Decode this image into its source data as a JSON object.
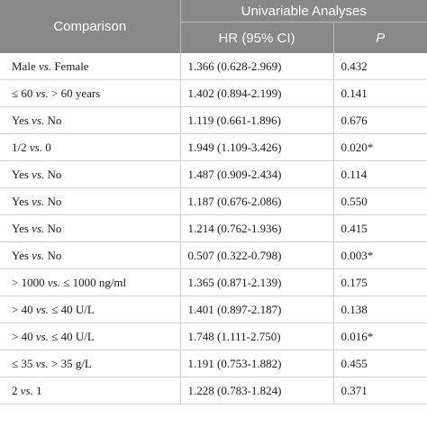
{
  "header": {
    "comparison": "Comparison",
    "group_title": "Univariable Analyses",
    "hr_col": "HR (95% CI)",
    "p_col": "P"
  },
  "rows": [
    {
      "pre": "Male ",
      "vs": "vs.",
      "post": " Female",
      "hr": "1.366 (0.628-2.969)",
      "p": "0.432"
    },
    {
      "pre": "≤ 60 ",
      "vs": "vs.",
      "post": " > 60 years",
      "hr": "1.402 (0.894-2.199)",
      "p": "0.141"
    },
    {
      "pre": "Yes ",
      "vs": "vs.",
      "post": " No",
      "hr": "1.119 (0.661-1.896)",
      "p": "0.676"
    },
    {
      "pre": "1/2 ",
      "vs": "vs.",
      "post": " 0",
      "hr": "1.949 (1.109-3.426)",
      "p": "0.020*"
    },
    {
      "pre": "Yes ",
      "vs": "vs.",
      "post": " No",
      "hr": "1.487 (0.909-2.434)",
      "p": "0.114"
    },
    {
      "pre": "Yes ",
      "vs": "vs.",
      "post": " No",
      "hr": "1.187 (0.676-2.086)",
      "p": "0.550"
    },
    {
      "pre": "Yes ",
      "vs": "vs.",
      "post": " No",
      "hr": "1.214 (0.762-1.936)",
      "p": "0.415"
    },
    {
      "pre": "Yes ",
      "vs": "vs.",
      "post": " No",
      "hr": "0.507 (0.322-0.798)",
      "p": "0.003*"
    },
    {
      "pre": "> 1000 ",
      "vs": "vs.",
      "post": " ≤ 1000 ng/ml",
      "hr": "1.365 (0.871-2.139)",
      "p": "0.175"
    },
    {
      "pre": "> 40 ",
      "vs": "vs.",
      "post": " ≤ 40 U/L",
      "hr": "1.401 (0.897-2.187)",
      "p": "0.138"
    },
    {
      "pre": "> 40 ",
      "vs": "vs.",
      "post": " ≤ 40 U/L",
      "hr": "1.748 (1.111-2.750)",
      "p": "0.016*"
    },
    {
      "pre": "≤ 35 ",
      "vs": "vs.",
      "post": " > 35 g/L",
      "hr": "1.191 (0.753-1.882)",
      "p": "0.455"
    },
    {
      "pre": "2 ",
      "vs": "vs.",
      "post": " 1",
      "hr": "1.228 (0.783-1.824)",
      "p": "0.371"
    }
  ],
  "colors": {
    "header_bg": "#898989",
    "header_text": "#ffffff",
    "rule": "#d2d2d2"
  }
}
